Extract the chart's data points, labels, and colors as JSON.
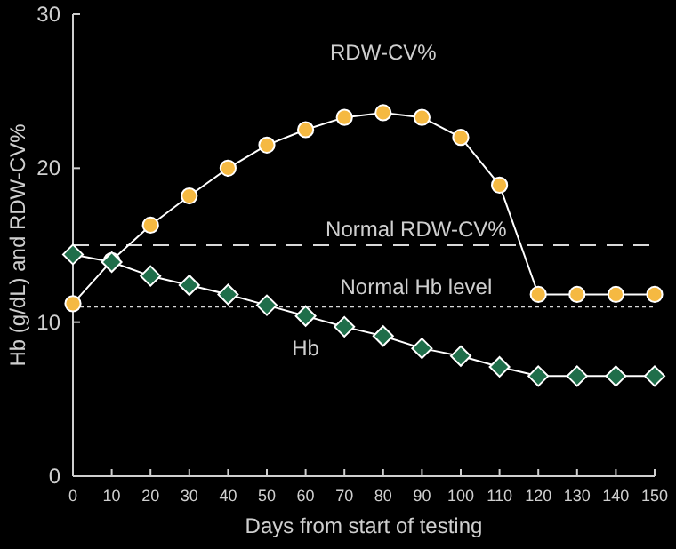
{
  "chart_data": {
    "type": "line",
    "xlabel": "Days from start of testing",
    "ylabel": "Hb (g/dL) and RDW-CV%",
    "x": [
      0,
      10,
      20,
      30,
      40,
      50,
      60,
      70,
      80,
      90,
      100,
      110,
      120,
      130,
      140,
      150
    ],
    "series": [
      {
        "name": "RDW-CV%",
        "color": "#f5b942",
        "marker": "circle",
        "values": [
          11.2,
          14.0,
          16.3,
          18.2,
          20.0,
          21.5,
          22.5,
          23.3,
          23.6,
          23.3,
          22.0,
          18.9,
          11.8,
          11.8,
          11.8,
          11.8
        ]
      },
      {
        "name": "Hb",
        "color": "#1f6e4a",
        "marker": "diamond",
        "values": [
          14.4,
          13.9,
          13.0,
          12.4,
          11.8,
          11.1,
          10.4,
          9.7,
          9.1,
          8.3,
          7.8,
          7.1,
          6.5,
          6.5,
          6.5,
          6.5
        ]
      }
    ],
    "xlim": [
      0,
      150
    ],
    "xticks": [
      0,
      10,
      20,
      30,
      40,
      50,
      60,
      70,
      80,
      90,
      100,
      110,
      120,
      130,
      140,
      150
    ],
    "ylim": [
      0,
      30
    ],
    "yticks": [
      0,
      10,
      20,
      30
    ],
    "ref_lines": [
      {
        "axis": "y",
        "value": 15,
        "label": "Normal RDW-CV%",
        "line_style": "dashed",
        "color": "#d9d9d9"
      },
      {
        "axis": "y",
        "value": 11,
        "label": "Normal Hb level",
        "line_style": "dotted",
        "color": "#d9d9d9"
      }
    ],
    "grid": false
  }
}
